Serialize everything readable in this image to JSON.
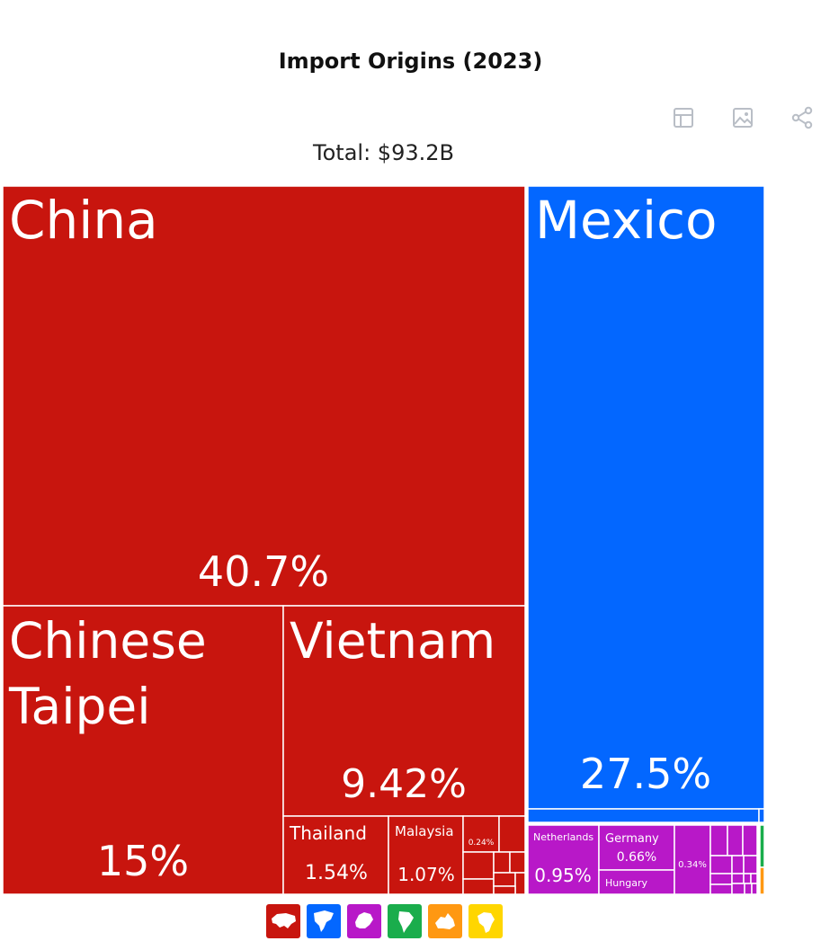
{
  "title": "Import Origins (2023)",
  "subtitle": "Total: $93.2B",
  "toolbar": {
    "icons": [
      "table-icon",
      "image-icon",
      "share-icon"
    ]
  },
  "colors": {
    "asia": "#c8150e",
    "north_america": "#0367ff",
    "europe": "#b818c8",
    "south_america": "#1aad4c",
    "oceania": "#ff9812",
    "africa": "#ffd600"
  },
  "chart_data": {
    "type": "treemap",
    "title": "Import Origins (2023)",
    "subtitle": "Total: $93.2B",
    "unit": "% of total",
    "items": [
      {
        "label": "China",
        "value": 40.7,
        "display": "40.7%",
        "group": "asia"
      },
      {
        "label": "Mexico",
        "value": 27.5,
        "display": "27.5%",
        "group": "north_america"
      },
      {
        "label": "Chinese Taipei",
        "value": 15,
        "display": "15%",
        "group": "asia"
      },
      {
        "label": "Vietnam",
        "value": 9.42,
        "display": "9.42%",
        "group": "asia"
      },
      {
        "label": "Thailand",
        "value": 1.54,
        "display": "1.54%",
        "group": "asia"
      },
      {
        "label": "Malaysia",
        "value": 1.07,
        "display": "1.07%",
        "group": "asia"
      },
      {
        "label": "",
        "value": 0.24,
        "display": "0.24%",
        "group": "asia"
      },
      {
        "label": "Netherlands",
        "value": 0.95,
        "display": "0.95%",
        "group": "europe"
      },
      {
        "label": "Germany",
        "value": 0.66,
        "display": "0.66%",
        "group": "europe"
      },
      {
        "label": "Hungary",
        "value": null,
        "display": "",
        "group": "europe"
      },
      {
        "label": "",
        "value": 0.34,
        "display": "0.34%",
        "group": "europe"
      }
    ],
    "legend": [
      "asia",
      "north_america",
      "europe",
      "south_america",
      "oceania",
      "africa"
    ]
  }
}
